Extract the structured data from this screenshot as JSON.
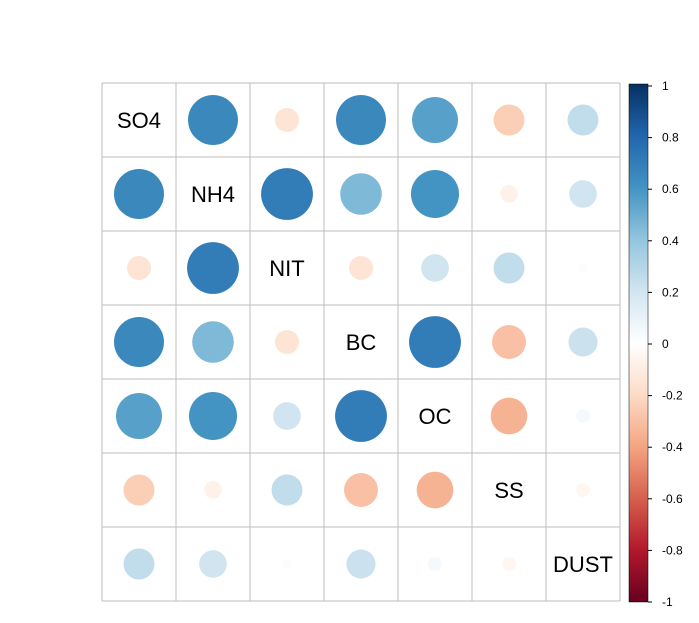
{
  "chart_data": {
    "type": "heatmap",
    "variables": [
      "SO4",
      "NH4",
      "NIT",
      "BC",
      "OC",
      "SS",
      "DUST"
    ],
    "correlation_matrix": [
      [
        1.0,
        0.65,
        -0.15,
        0.65,
        0.55,
        -0.25,
        0.25
      ],
      [
        0.65,
        1.0,
        0.7,
        0.45,
        0.6,
        -0.08,
        0.2
      ],
      [
        -0.15,
        0.7,
        1.0,
        -0.15,
        0.2,
        0.25,
        0.02
      ],
      [
        0.65,
        0.45,
        -0.15,
        1.0,
        0.7,
        -0.3,
        0.22
      ],
      [
        0.55,
        0.6,
        0.2,
        0.7,
        1.0,
        -0.35,
        0.05
      ],
      [
        -0.25,
        -0.08,
        0.25,
        -0.3,
        -0.35,
        1.0,
        -0.05
      ],
      [
        0.25,
        0.2,
        0.02,
        0.22,
        0.05,
        -0.05,
        1.0
      ]
    ],
    "colorbar": {
      "range": [
        -1,
        1
      ],
      "ticks": [
        "1",
        "0.8",
        "0.6",
        "0.4",
        "0.2",
        "0",
        "-0.2",
        "-0.4",
        "-0.6",
        "-0.8",
        "-1"
      ]
    },
    "grid": true,
    "legend_position": "right"
  }
}
